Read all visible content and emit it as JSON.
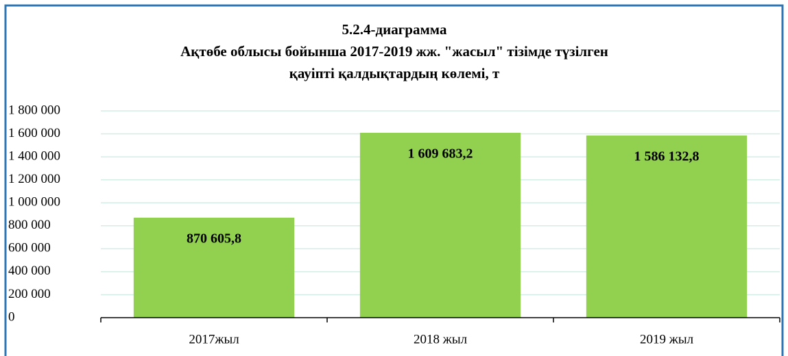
{
  "chart_data": {
    "type": "bar",
    "title": [
      "5.2.4-диаграмма",
      "Ақтөбе облысы бойынша 2017-2019 жж. \"жасыл\" тізімде түзілген",
      "қауіпті қалдықтардың көлемі, т"
    ],
    "categories": [
      "2017жыл",
      "2018 жыл",
      "2019 жыл"
    ],
    "values": [
      870605.8,
      1609683.2,
      1586132.8
    ],
    "value_labels": [
      "870 605,8",
      "1 609 683,2",
      "1 586 132,8"
    ],
    "color": "#92d050",
    "ylim": [
      0,
      1800000
    ],
    "yticks": [
      0,
      {
        "value": 200000,
        "label": "200 000"
      },
      {
        "value": 400000,
        "label": "400 000"
      },
      {
        "value": 600000,
        "label": "600 000"
      },
      {
        "value": 800000,
        "label": "800 000"
      },
      {
        "value": 1000000,
        "label": "1 000 000"
      },
      {
        "value": 1200000,
        "label": "1 200 000"
      },
      {
        "value": 1400000,
        "label": "1 400 000"
      },
      {
        "value": 1600000,
        "label": "1 600 000"
      },
      {
        "value": 1800000,
        "label": "1 800 000"
      }
    ],
    "grid": true
  }
}
